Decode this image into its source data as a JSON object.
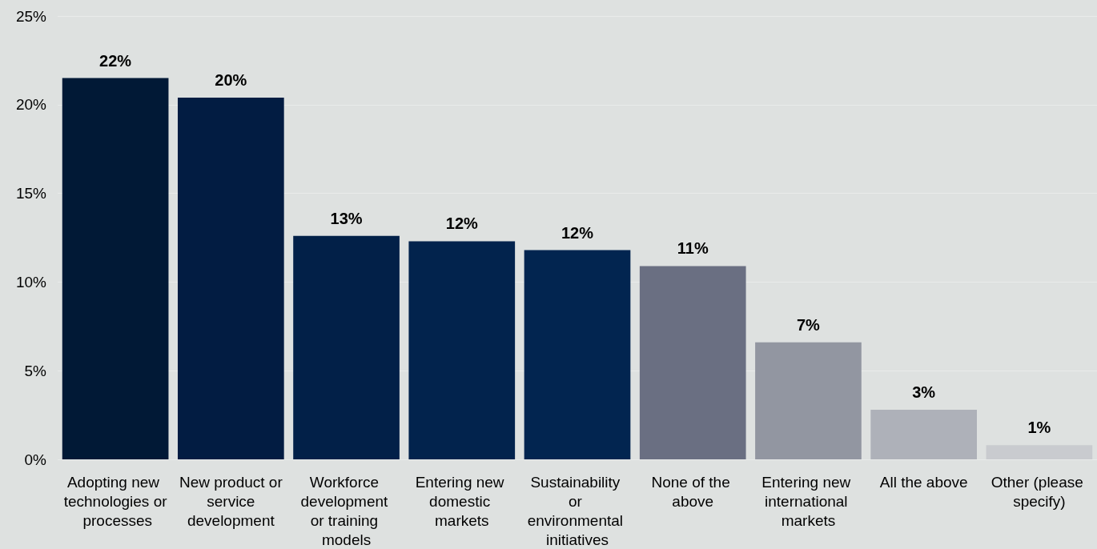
{
  "chart_data": {
    "type": "bar",
    "categories": [
      "Adopting new technologies or processes",
      "New product or service development",
      "Workforce development or training models",
      "Entering new domestic markets",
      "Sustainability or environmental initiatives",
      "None of the above",
      "Entering new international markets",
      "All the above",
      "Other (please specify)"
    ],
    "values": [
      21.5,
      20.4,
      12.6,
      12.3,
      11.8,
      10.9,
      6.6,
      2.8,
      0.8
    ],
    "value_labels": [
      "22%",
      "20%",
      "13%",
      "12%",
      "12%",
      "11%",
      "7%",
      "3%",
      "1%"
    ],
    "colors": [
      "#011936",
      "#021c42",
      "#022048",
      "#02234d",
      "#022550",
      "#6a6f82",
      "#9296a1",
      "#aeb1b9",
      "#c9cbcf"
    ],
    "ylim": [
      0,
      25
    ],
    "yticks": [
      {
        "value": 0,
        "label": "0%"
      },
      {
        "value": 5,
        "label": "5%"
      },
      {
        "value": 10,
        "label": "10%"
      },
      {
        "value": 15,
        "label": "15%"
      },
      {
        "value": 20,
        "label": "20%"
      },
      {
        "value": 25,
        "label": "25%"
      }
    ],
    "grid": "y"
  }
}
